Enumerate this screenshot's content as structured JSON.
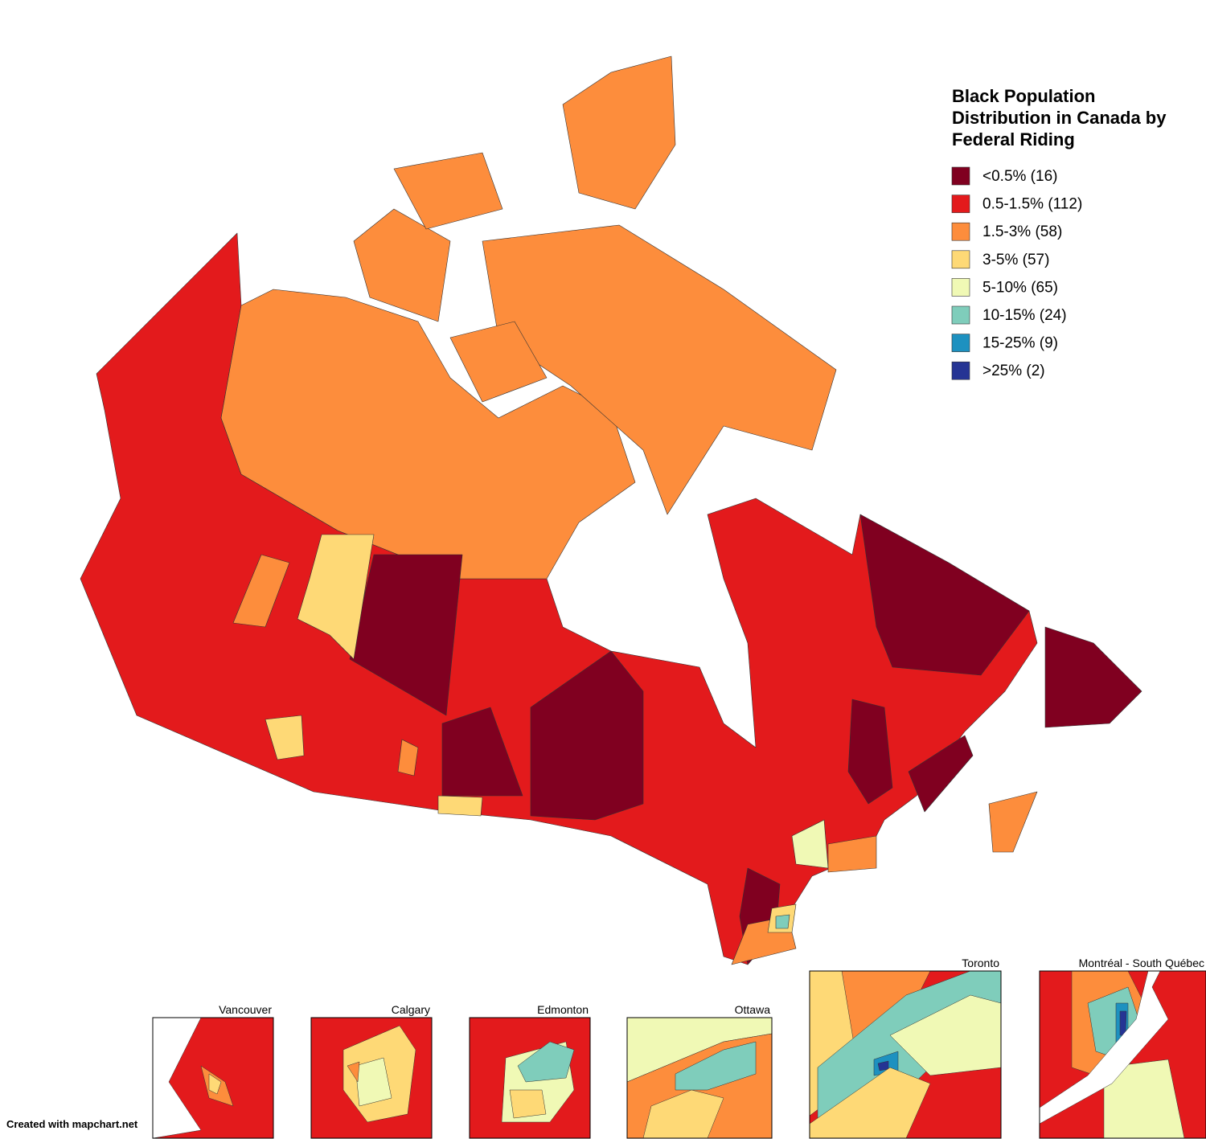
{
  "map": {
    "title_lines": [
      "Black Population",
      "Distribution in Canada by",
      "Federal Riding"
    ],
    "legend": [
      {
        "label": "<0.5% (16)",
        "color": "#800020"
      },
      {
        "label": "0.5-1.5% (112)",
        "color": "#e31a1c"
      },
      {
        "label": "1.5-3% (58)",
        "color": "#fd8d3c"
      },
      {
        "label": "3-5% (57)",
        "color": "#fed976"
      },
      {
        "label": "5-10% (65)",
        "color": "#f0f9b5"
      },
      {
        "label": "10-15% (24)",
        "color": "#7fcdbb"
      },
      {
        "label": "15-25% (9)",
        "color": "#1d91c0"
      },
      {
        "label": ">25% (2)",
        "color": "#253494"
      }
    ],
    "insets": [
      "Vancouver",
      "Calgary",
      "Edmonton",
      "Ottawa",
      "Toronto",
      "Montréal - South Québec"
    ],
    "footer": "Created with mapchart.net"
  }
}
